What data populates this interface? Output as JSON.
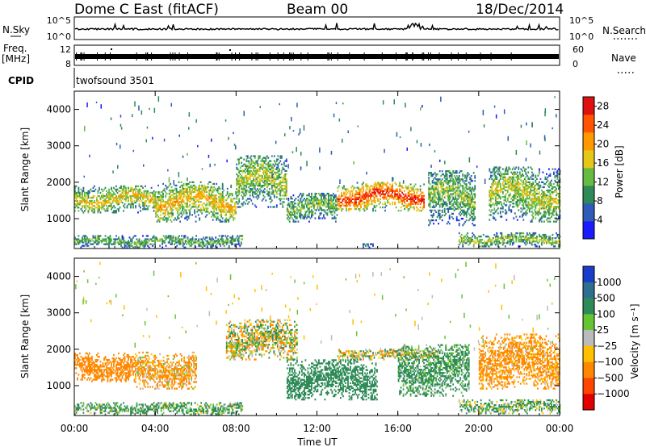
{
  "header": {
    "radar": "Dome C East (fitACF)",
    "beam": "Beam 00",
    "date": "18/Dec/2014"
  },
  "strip_panels": {
    "nsky": {
      "label": "N.Sky",
      "ticks": [
        "10^5",
        "10^0"
      ],
      "right_label": "N.Search",
      "right_ticks": [
        "10^5",
        "10^0"
      ]
    },
    "freq": {
      "label_line1": "Freq.",
      "label_line2": "[MHz]",
      "ticks": [
        "12",
        "8"
      ],
      "right_label": "Nave",
      "right_ticks": [
        "60",
        "0"
      ]
    },
    "cpid": {
      "label": "CPID",
      "program": "twofsound 3501"
    }
  },
  "chart_data": [
    {
      "type": "heatmap",
      "panel": "power",
      "ylabel": "Slant Range [km]",
      "xlabel": "Time UT",
      "x_ticks": [
        "00:00",
        "04:00",
        "08:00",
        "12:00",
        "16:00",
        "20:00",
        "00:00"
      ],
      "x_range_hours": [
        0,
        24
      ],
      "y_ticks": [
        "1000",
        "2000",
        "3000",
        "4000"
      ],
      "y_range_km": [
        180,
        4500
      ],
      "colorbar": {
        "label": "Power [dB]",
        "ticks": [
          "4",
          "8",
          "12",
          "16",
          "20",
          "24",
          "28"
        ],
        "range": [
          0,
          30
        ],
        "colors": [
          "#1a1aff",
          "#2e5cb8",
          "#2e8b57",
          "#66bb44",
          "#e6c619",
          "#ff9900",
          "#ff5500",
          "#e01010"
        ]
      },
      "echo_bands": [
        {
          "t_start": 0.0,
          "t_end": 8.3,
          "r_low": 190,
          "r_high": 520,
          "level": 11
        },
        {
          "t_start": 14.2,
          "t_end": 14.8,
          "r_low": 190,
          "r_high": 300,
          "level": 7
        },
        {
          "t_start": 19.0,
          "t_end": 24.0,
          "r_low": 220,
          "r_high": 600,
          "level": 13
        },
        {
          "t_start": 0.0,
          "t_end": 4.0,
          "r_low": 1150,
          "r_high": 1900,
          "level": 16
        },
        {
          "t_start": 4.0,
          "t_end": 8.0,
          "r_low": 900,
          "r_high": 2000,
          "level": 17
        },
        {
          "t_start": 8.0,
          "t_end": 10.5,
          "r_low": 1300,
          "r_high": 2700,
          "level": 14
        },
        {
          "t_start": 10.5,
          "t_end": 13.0,
          "r_low": 900,
          "r_high": 1700,
          "level": 12
        },
        {
          "t_start": 13.0,
          "t_end": 17.3,
          "r_low": 1200,
          "r_high": 2000,
          "level": 24
        },
        {
          "t_start": 17.5,
          "t_end": 19.8,
          "r_low": 800,
          "r_high": 2300,
          "level": 12
        },
        {
          "t_start": 20.5,
          "t_end": 24.0,
          "r_low": 900,
          "r_high": 2400,
          "level": 14
        }
      ]
    },
    {
      "type": "heatmap",
      "panel": "velocity",
      "ylabel": "Slant Range [km]",
      "xlabel": "Time UT",
      "x_ticks": [
        "00:00",
        "04:00",
        "08:00",
        "12:00",
        "16:00",
        "20:00",
        "00:00"
      ],
      "x_range_hours": [
        0,
        24
      ],
      "y_ticks": [
        "1000",
        "2000",
        "3000",
        "4000"
      ],
      "y_range_km": [
        180,
        4500
      ],
      "colorbar": {
        "label": "Velocity [m s⁻¹]",
        "ticks": [
          "1000",
          "500",
          "100",
          "25",
          "−25",
          "−100",
          "−500",
          "−1000"
        ],
        "colors": [
          "#1a3cc8",
          "#2e6e8e",
          "#2e8b57",
          "#66c433",
          "#bbbbbb",
          "#ffc000",
          "#ff8800",
          "#ff4400",
          "#e00000"
        ]
      },
      "echo_bands": [
        {
          "t_start": 0.0,
          "t_end": 8.3,
          "r_low": 190,
          "r_high": 520,
          "velocity": 150
        },
        {
          "t_start": 19.0,
          "t_end": 24.0,
          "r_low": 220,
          "r_high": 600,
          "velocity": 120
        },
        {
          "t_start": 0.0,
          "t_end": 3.0,
          "r_low": 1100,
          "r_high": 1900,
          "velocity": -300
        },
        {
          "t_start": 3.0,
          "t_end": 6.0,
          "r_low": 900,
          "r_high": 1900,
          "velocity": -150
        },
        {
          "t_start": 7.5,
          "t_end": 11.0,
          "r_low": 1700,
          "r_high": 2800,
          "velocity": 0
        },
        {
          "t_start": 10.5,
          "t_end": 15.0,
          "r_low": 600,
          "r_high": 1700,
          "velocity": 300
        },
        {
          "t_start": 13.0,
          "t_end": 18.0,
          "r_low": 1700,
          "r_high": 2000,
          "velocity": 0
        },
        {
          "t_start": 16.0,
          "t_end": 19.5,
          "r_low": 700,
          "r_high": 2100,
          "velocity": 200
        },
        {
          "t_start": 20.0,
          "t_end": 24.0,
          "r_low": 900,
          "r_high": 2400,
          "velocity": -200
        }
      ]
    }
  ]
}
